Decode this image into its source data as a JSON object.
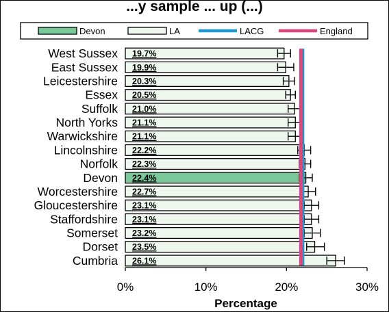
{
  "chart_data": {
    "type": "bar",
    "orientation": "horizontal",
    "title": "...y sample ... up (...)",
    "xlabel": "Percentage",
    "ylabel": "",
    "xlim": [
      0,
      30
    ],
    "xticks": [
      "0%",
      "10%",
      "20%",
      "30%"
    ],
    "grid": false,
    "legend_position": "top",
    "categories": [
      "West Sussex",
      "East Sussex",
      "Leicestershire",
      "Essex",
      "Suffolk",
      "North Yorks",
      "Warwickshire",
      "Lincolnshire",
      "Norfolk",
      "Devon",
      "Worcestershire",
      "Gloucestershire",
      "Staffordshire",
      "Somerset",
      "Dorset",
      "Cumbria"
    ],
    "values": [
      19.7,
      19.9,
      20.3,
      20.5,
      21.0,
      21.1,
      21.1,
      22.2,
      22.3,
      22.4,
      22.7,
      23.1,
      23.1,
      23.2,
      23.5,
      26.1
    ],
    "value_labels": [
      "19.7%",
      "19.9%",
      "20.3%",
      "20.5%",
      "21.0%",
      "21.1%",
      "21.1%",
      "22.2%",
      "22.3%",
      "22.4%",
      "22.7%",
      "23.1%",
      "23.1%",
      "23.2%",
      "23.5%",
      "26.1%"
    ],
    "error_low": [
      18.9,
      18.9,
      19.6,
      19.9,
      20.2,
      20.2,
      20.2,
      21.4,
      21.6,
      21.6,
      21.8,
      22.2,
      22.2,
      22.2,
      22.5,
      25.0
    ],
    "error_high": [
      20.5,
      20.9,
      21.0,
      21.1,
      21.8,
      22.0,
      22.0,
      23.0,
      23.0,
      23.2,
      23.6,
      24.0,
      24.0,
      24.2,
      24.7,
      27.2
    ],
    "highlight_category": "Devon",
    "reference_lines": [
      {
        "name": "LACG",
        "value": 22.0,
        "color": "#1f9ad6"
      },
      {
        "name": "England",
        "value": 21.8,
        "color": "#e0457b"
      }
    ],
    "legend": [
      {
        "name": "Devon",
        "type": "bar",
        "color": "#7ac79a"
      },
      {
        "name": "LA",
        "type": "bar",
        "color": "#eef7ee"
      },
      {
        "name": "LACG",
        "type": "line",
        "color": "#1f9ad6"
      },
      {
        "name": "England",
        "type": "line",
        "color": "#e0457b"
      }
    ],
    "colors": {
      "default_bar": "#eef7ee",
      "highlight_bar": "#7ac79a",
      "bar_border": "#000000"
    }
  }
}
